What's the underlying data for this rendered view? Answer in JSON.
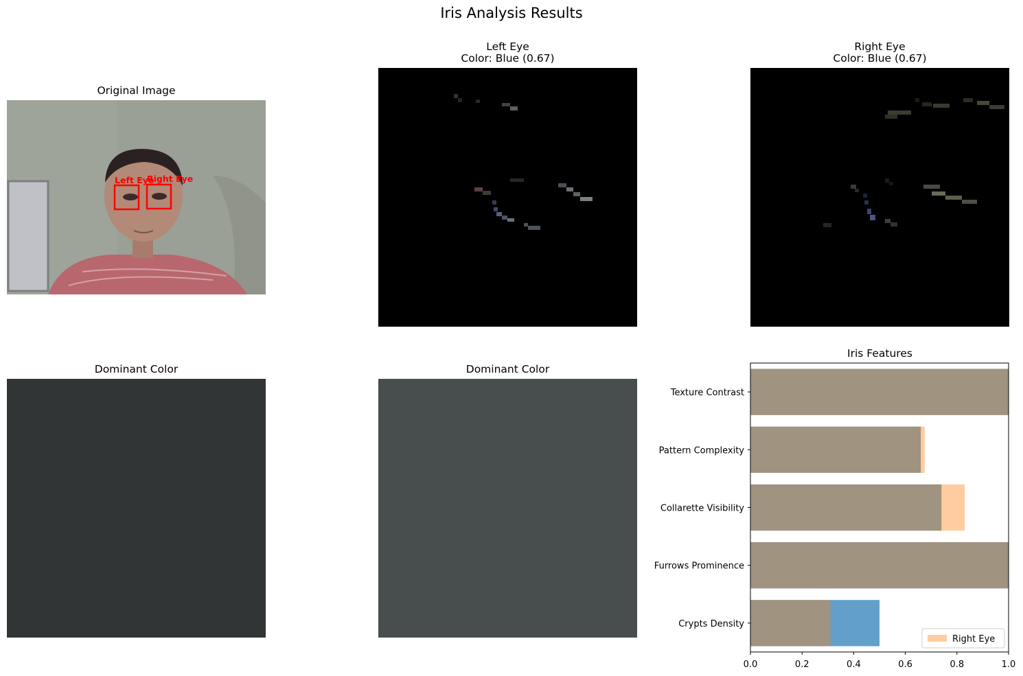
{
  "figure": {
    "title": "Iris Analysis Results"
  },
  "panels": {
    "original": {
      "title": "Original Image",
      "labels": {
        "left": "Left Eye",
        "right": "Right Eye"
      }
    },
    "left_eye": {
      "title": "Left Eye",
      "subtitle": "Color: Blue (0.67)"
    },
    "right_eye": {
      "title": "Right Eye",
      "subtitle": "Color: Blue (0.67)"
    },
    "dominant_left": {
      "title": "Dominant Color",
      "color": "#323535"
    },
    "dominant_right": {
      "title": "Dominant Color",
      "color": "#484d4d"
    },
    "features": {
      "title": "Iris Features"
    }
  },
  "chart_data": {
    "type": "bar",
    "orientation": "horizontal",
    "title": "Iris Features",
    "categories": [
      "Crypts Density",
      "Furrows Prominence",
      "Collarette Visibility",
      "Pattern Complexity",
      "Texture Contrast"
    ],
    "series": [
      {
        "color": "#1f77b4",
        "values": [
          0.5,
          1.0,
          0.74,
          0.66,
          1.0
        ]
      },
      {
        "name": "Right Eye",
        "color": "#ff7f0e",
        "values": [
          0.31,
          1.0,
          0.83,
          0.675,
          1.0
        ]
      }
    ],
    "xlim": [
      0,
      1.0
    ],
    "xticks": [
      "0.0",
      "0.2",
      "0.4",
      "0.6",
      "0.8",
      "1.0"
    ],
    "legend": {
      "label": "Right Eye",
      "position": "lower-right"
    }
  }
}
